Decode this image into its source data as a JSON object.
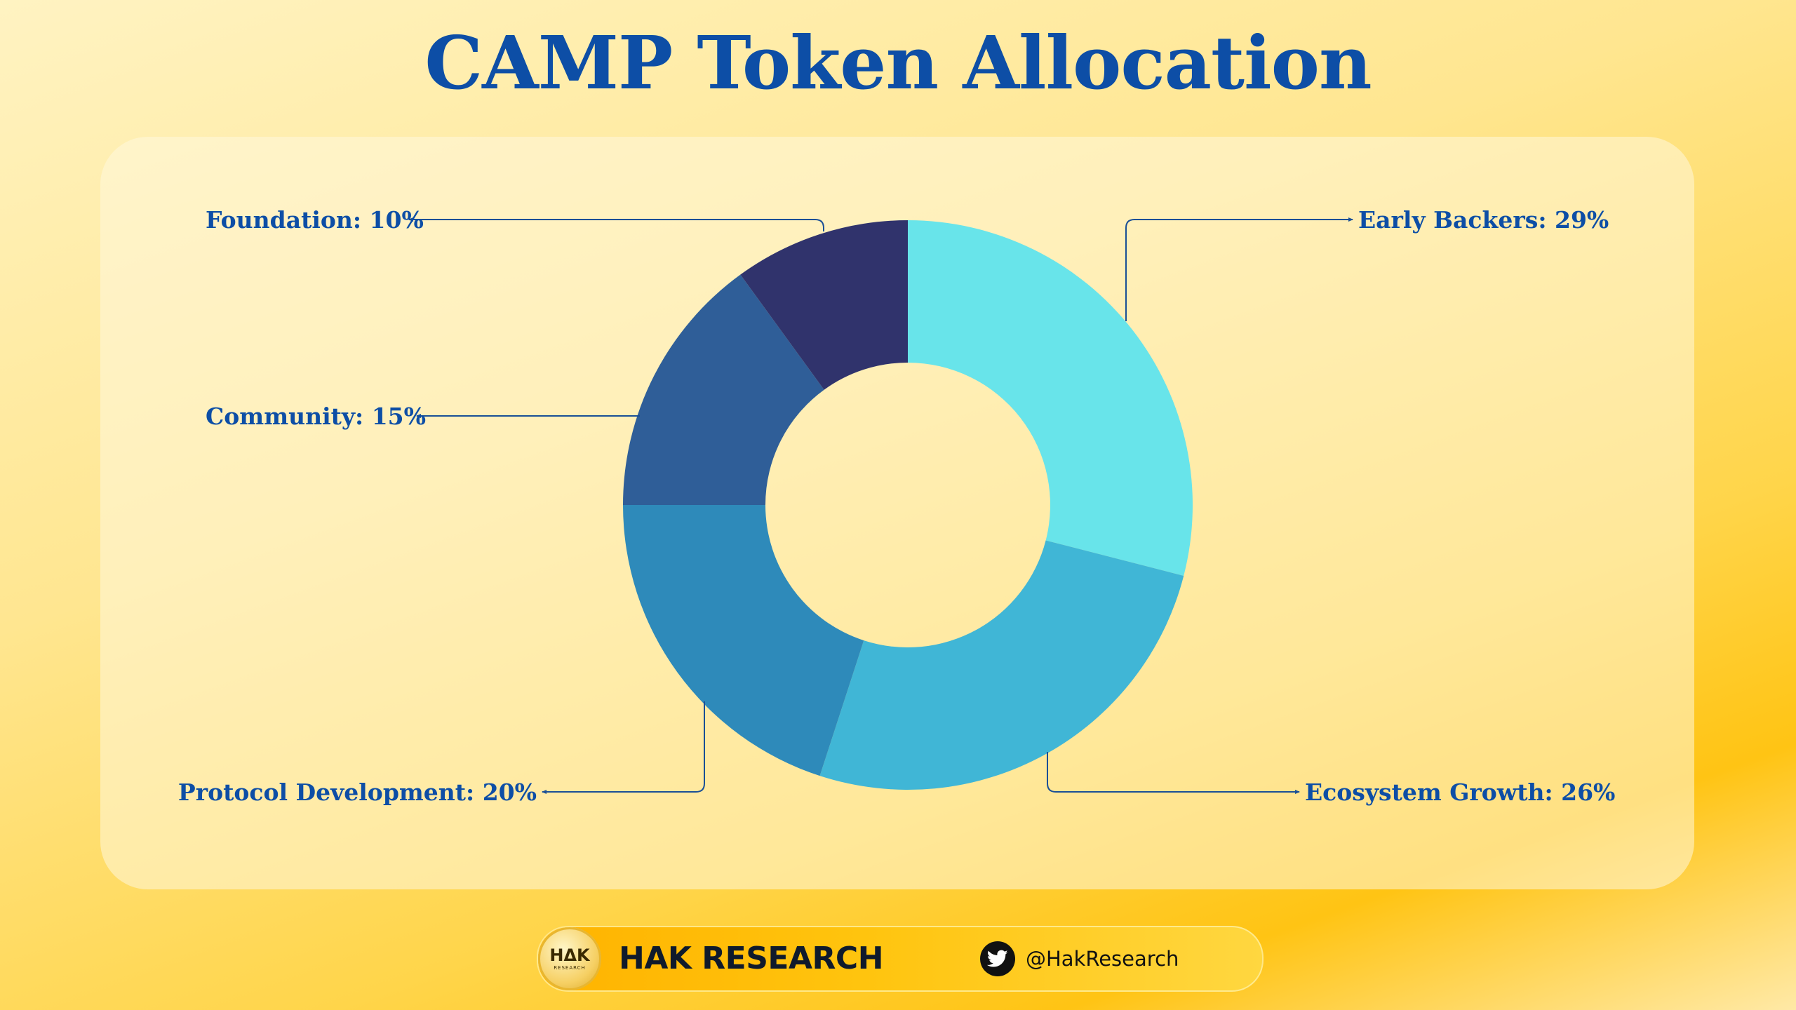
{
  "chart_data": {
    "type": "pie",
    "title": "CAMP Token Allocation",
    "donut": true,
    "slices": [
      {
        "label": "Early Backers",
        "value": 29,
        "display": "Early Backers: 29%",
        "color": "#68e4ea"
      },
      {
        "label": "Ecosystem Growth",
        "value": 26,
        "display": "Ecosystem Growth: 26%",
        "color": "#40b6d6"
      },
      {
        "label": "Protocol Development",
        "value": 20,
        "display": "Protocol Development: 20%",
        "color": "#2e8aba"
      },
      {
        "label": "Community",
        "value": 15,
        "display": "Community: 15%",
        "color": "#2f5e98"
      },
      {
        "label": "Foundation",
        "value": 10,
        "display": "Foundation: 10%",
        "color": "#30336c"
      }
    ]
  },
  "colors": {
    "title": "#0d4ea6",
    "label": "#0d4ea6",
    "leader_line": "#1a4f96"
  },
  "footer": {
    "logo_mark": "HΔK",
    "logo_sub": "RESEARCH",
    "brand": "HAK RESEARCH",
    "social_icon": "twitter-bird-icon",
    "handle": "@HakResearch"
  }
}
